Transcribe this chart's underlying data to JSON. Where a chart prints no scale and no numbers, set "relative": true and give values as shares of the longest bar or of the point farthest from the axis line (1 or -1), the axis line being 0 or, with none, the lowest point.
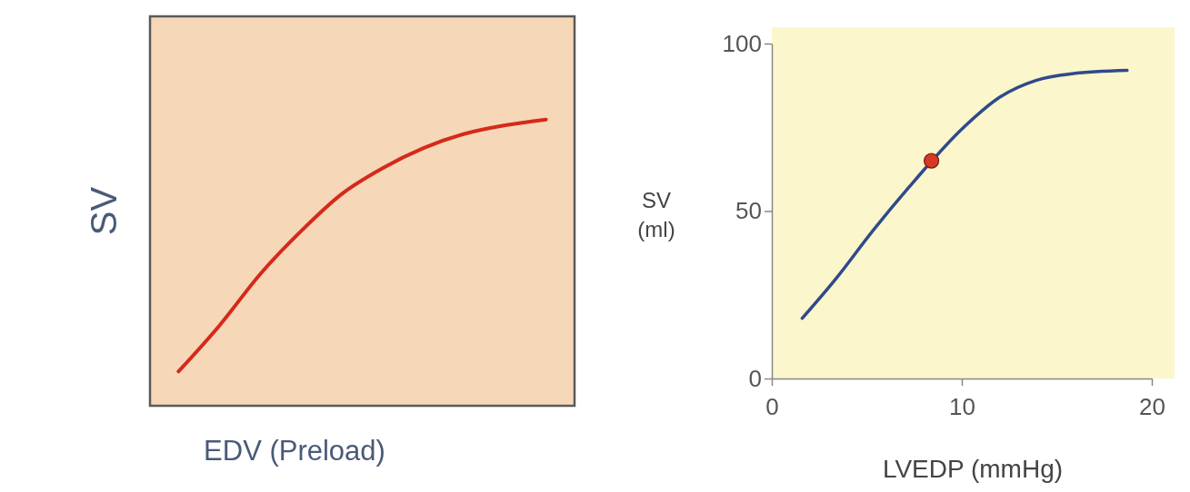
{
  "chart_data": [
    {
      "type": "line",
      "relative": true,
      "xlabel": "EDV (Preload)",
      "ylabel": "SV",
      "categories": [
        null,
        null,
        null,
        null,
        null,
        null,
        null,
        null,
        null,
        null
      ],
      "series": [
        {
          "color": "#d42a1a",
          "values": [
            0.12,
            0.28,
            0.46,
            0.61,
            0.74,
            0.83,
            0.9,
            0.95,
            0.98,
            1
          ]
        }
      ]
    },
    {
      "type": "line",
      "xlabel": "LVEDP (mmHg)",
      "ylabel": "SV (ml)",
      "xlim": [
        0,
        20
      ],
      "xticks": [
        0,
        10,
        20
      ],
      "ylim": [
        0,
        100
      ],
      "yticks": [
        0,
        50,
        100
      ],
      "series": [
        {
          "color": "#2f4a8a",
          "x": [
            1.6,
            3.4,
            5.3,
            7.2,
            10.1,
            12,
            13.9,
            15.8,
            18.7
          ],
          "values": [
            18,
            30,
            44,
            57,
            75,
            84,
            89,
            91,
            92
          ]
        },
        {
          "type": "scatter",
          "color": "#d63a25",
          "marker": "circle",
          "x": [
            8.4
          ],
          "values": [
            65
          ]
        }
      ]
    }
  ]
}
